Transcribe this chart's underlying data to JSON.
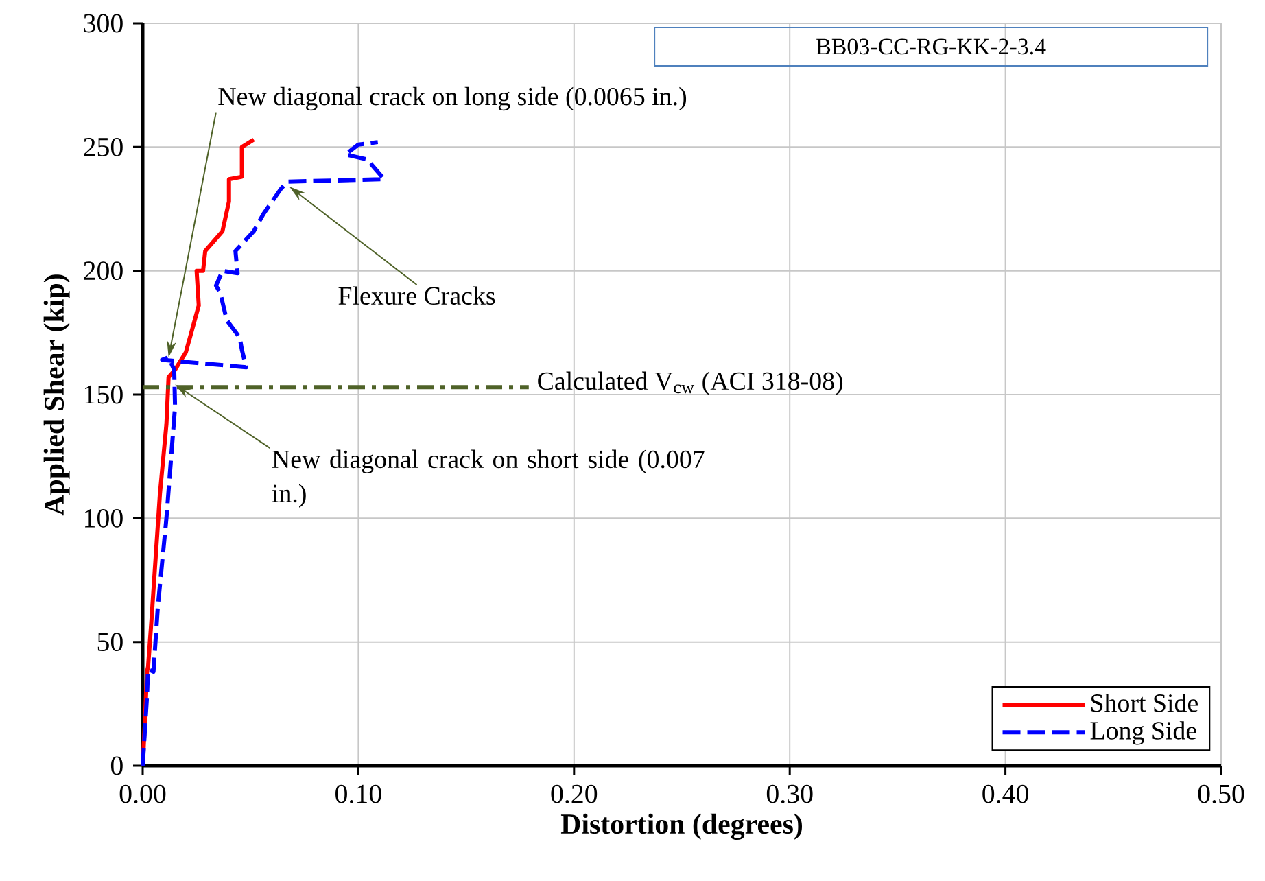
{
  "chart_data": {
    "type": "line",
    "title": "BB03-CC-RG-KK-2-3.4",
    "xlabel": "Distortion (degrees)",
    "ylabel": "Applied Shear (kip)",
    "xlim": [
      0,
      0.5
    ],
    "ylim": [
      0,
      300
    ],
    "xticks": [
      {
        "value": 0,
        "label": "0.00"
      },
      {
        "value": 0.1,
        "label": "0.10"
      },
      {
        "value": 0.2,
        "label": "0.20"
      },
      {
        "value": 0.3,
        "label": "0.30"
      },
      {
        "value": 0.4,
        "label": "0.40"
      },
      {
        "value": 0.5,
        "label": "0.50"
      }
    ],
    "yticks": [
      0,
      50,
      100,
      150,
      200,
      250,
      300
    ],
    "grid": true,
    "legend": "bottom right",
    "series": [
      {
        "name": "Short Side",
        "color": "#ff0000",
        "line_style": "solid",
        "x": [
          0,
          0.001,
          0.002,
          0.0025,
          0.004,
          0.008,
          0.011,
          0.012,
          0.015,
          0.02,
          0.026,
          0.025,
          0.028,
          0.029,
          0.037,
          0.04,
          0.04,
          0.046,
          0.046,
          0.0515
        ],
        "values": [
          0,
          17,
          38,
          40,
          58,
          110,
          138,
          157,
          160,
          167,
          186,
          200,
          200,
          208,
          216,
          228,
          237,
          238,
          250,
          253
        ]
      },
      {
        "name": "Long Side",
        "color": "#0000ff",
        "line_style": "dashed",
        "x": [
          0,
          0.002,
          0.0025,
          0.005,
          0.007,
          0.011,
          0.015,
          0.0146,
          0.012,
          0.009,
          0.048,
          0.046,
          0.045,
          0.039,
          0.036,
          0.034,
          0.037,
          0.044,
          0.043,
          0.0515,
          0.056,
          0.064,
          0.067,
          0.112,
          0.104,
          0.094,
          0.1,
          0.109
        ],
        "values": [
          0,
          28,
          39,
          38,
          64,
          100,
          145,
          160,
          165,
          164,
          161,
          168,
          173,
          180,
          191,
          194,
          200,
          199,
          208,
          216,
          223,
          233,
          236,
          237,
          245,
          247,
          251,
          252
        ]
      },
      {
        "color": "#4f6228",
        "line_style": "dashdot",
        "x": [
          0,
          0.179
        ],
        "values": [
          153,
          153
        ]
      }
    ],
    "annotations": [
      {
        "text": "New diagonal crack on long side (0.0065 in.)",
        "x": 0.012,
        "y": 165
      },
      {
        "text": "Flexure Cracks",
        "x": 0.068,
        "y": 234
      },
      {
        "text": "New diagonal crack on short side (0.007 in.)",
        "x": 0.015,
        "y": 154
      },
      {
        "text": "Calculated V$_{cw}$ (ACI 318-08)",
        "x": 0.179,
        "y": 153
      }
    ]
  }
}
